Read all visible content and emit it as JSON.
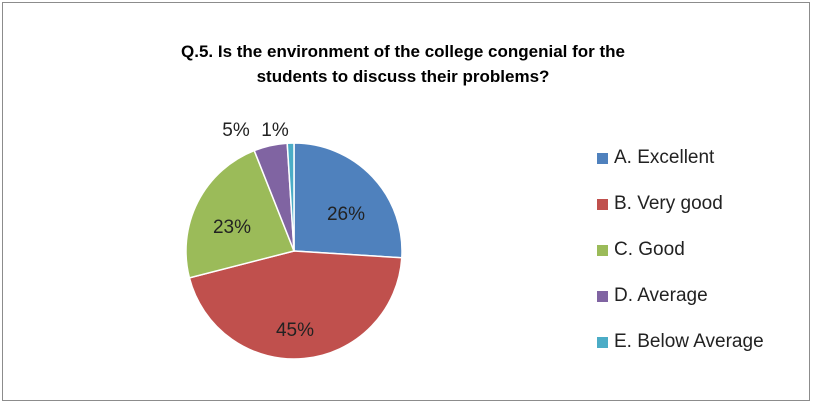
{
  "chart_data": {
    "type": "pie",
    "title_lines": [
      "Q.5. Is the environment of the college congenial for the",
      "students to discuss their problems?"
    ],
    "slices": [
      {
        "name": "A. Excellent",
        "value": 26,
        "label": "26%",
        "color": "#4f81bd"
      },
      {
        "name": "B. Very good",
        "value": 45,
        "label": "45%",
        "color": "#c0504d"
      },
      {
        "name": "C. Good",
        "value": 23,
        "label": "23%",
        "color": "#9bbb59"
      },
      {
        "name": "D. Average",
        "value": 5,
        "label": "5%",
        "color": "#8064a2"
      },
      {
        "name": "E. Below Average",
        "value": 1,
        "label": "1%",
        "color": "#4bacc6"
      }
    ],
    "legend_position": "right"
  }
}
